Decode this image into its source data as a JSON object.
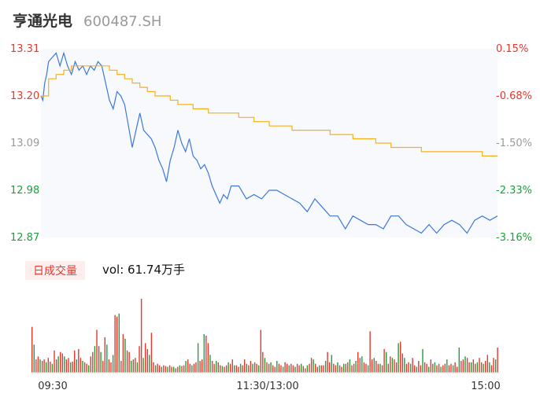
{
  "header": {
    "name": "亨通光电",
    "code": "600487.SH"
  },
  "volume": {
    "tag": "日成交量",
    "readout": "vol: 61.74万手"
  },
  "chart_data": [
    {
      "type": "line",
      "title": "",
      "x_ticks": [
        "09:30",
        "11:30/13:00",
        "15:00"
      ],
      "y_ticks_left": [
        "13.31",
        "13.20",
        "13.09",
        "12.98",
        "12.87"
      ],
      "y_ticks_right": [
        "0.15%",
        "-0.68%",
        "-1.50%",
        "-2.33%",
        "-3.16%"
      ],
      "ylim": [
        12.87,
        13.31
      ],
      "colors": {
        "up": "#e8372c",
        "neutral": "#999999",
        "down": "#1aa33a",
        "price": "#3c78d8",
        "avg": "#f5b01c"
      },
      "series": [
        {
          "role": "price",
          "x": [
            0,
            1,
            2,
            3,
            4,
            6,
            8,
            10,
            12,
            14,
            16,
            18,
            20,
            22,
            24,
            26,
            28,
            30,
            32,
            34,
            36,
            38,
            40,
            42,
            44,
            46,
            48,
            50,
            52,
            54,
            56,
            58,
            60,
            62,
            64,
            66,
            68,
            70,
            72,
            74,
            76,
            78,
            80,
            82,
            84,
            86,
            88,
            90,
            92,
            94,
            96,
            98,
            100,
            104,
            108,
            112,
            116,
            120,
            124,
            128,
            132,
            136,
            140,
            144,
            148,
            152,
            156,
            160,
            164,
            168,
            172,
            176,
            180,
            184,
            188,
            192,
            196,
            200,
            204,
            208,
            212,
            216,
            220,
            224,
            228,
            232,
            236,
            240
          ],
          "values": [
            13.2,
            13.19,
            13.23,
            13.25,
            13.28,
            13.29,
            13.3,
            13.27,
            13.3,
            13.27,
            13.25,
            13.28,
            13.26,
            13.27,
            13.25,
            13.27,
            13.26,
            13.28,
            13.27,
            13.23,
            13.19,
            13.17,
            13.21,
            13.2,
            13.18,
            13.13,
            13.08,
            13.12,
            13.16,
            13.12,
            13.11,
            13.1,
            13.08,
            13.05,
            13.03,
            13.0,
            13.05,
            13.08,
            13.12,
            13.09,
            13.07,
            13.1,
            13.06,
            13.05,
            13.03,
            13.04,
            13.02,
            12.99,
            12.97,
            12.95,
            12.97,
            12.96,
            12.99,
            12.99,
            12.96,
            12.97,
            12.96,
            12.98,
            12.98,
            12.97,
            12.96,
            12.95,
            12.93,
            12.96,
            12.94,
            12.92,
            12.92,
            12.89,
            12.92,
            12.91,
            12.9,
            12.9,
            12.89,
            12.92,
            12.92,
            12.9,
            12.89,
            12.88,
            12.9,
            12.88,
            12.9,
            12.91,
            12.9,
            12.88,
            12.91,
            12.92,
            12.91,
            12.92
          ]
        },
        {
          "role": "average",
          "x": [
            0,
            4,
            8,
            12,
            16,
            20,
            24,
            28,
            32,
            36,
            40,
            44,
            48,
            52,
            56,
            60,
            64,
            68,
            72,
            76,
            80,
            84,
            88,
            92,
            96,
            100,
            104,
            108,
            112,
            116,
            120,
            124,
            128,
            132,
            136,
            140,
            144,
            148,
            152,
            156,
            160,
            164,
            168,
            172,
            176,
            180,
            184,
            188,
            192,
            196,
            200,
            204,
            208,
            212,
            216,
            220,
            224,
            228,
            232,
            236,
            240
          ],
          "values": [
            13.2,
            13.24,
            13.25,
            13.26,
            13.27,
            13.27,
            13.27,
            13.27,
            13.27,
            13.26,
            13.25,
            13.24,
            13.23,
            13.22,
            13.21,
            13.2,
            13.2,
            13.19,
            13.18,
            13.18,
            13.17,
            13.17,
            13.16,
            13.16,
            13.16,
            13.16,
            13.15,
            13.15,
            13.14,
            13.14,
            13.13,
            13.13,
            13.13,
            13.12,
            13.12,
            13.12,
            13.12,
            13.12,
            13.11,
            13.11,
            13.11,
            13.1,
            13.1,
            13.1,
            13.09,
            13.09,
            13.08,
            13.08,
            13.08,
            13.08,
            13.07,
            13.07,
            13.07,
            13.07,
            13.07,
            13.07,
            13.07,
            13.07,
            13.06,
            13.06,
            13.06
          ]
        }
      ]
    },
    {
      "type": "bar",
      "title": "",
      "ylim": [
        0,
        100
      ],
      "values": [
        62,
        38,
        18,
        22,
        18,
        16,
        18,
        14,
        20,
        15,
        12,
        30,
        18,
        22,
        28,
        26,
        22,
        18,
        20,
        14,
        15,
        30,
        18,
        32,
        20,
        16,
        14,
        12,
        10,
        22,
        28,
        36,
        58,
        36,
        28,
        16,
        48,
        38,
        18,
        14,
        24,
        78,
        76,
        80,
        16,
        52,
        46,
        30,
        28,
        16,
        18,
        20,
        14,
        36,
        100,
        20,
        40,
        32,
        24,
        54,
        14,
        10,
        12,
        10,
        8,
        10,
        9,
        8,
        10,
        8,
        8,
        6,
        8,
        10,
        9,
        10,
        16,
        18,
        12,
        10,
        12,
        14,
        40,
        16,
        18,
        52,
        50,
        40,
        24,
        16,
        12,
        16,
        14,
        10,
        9,
        8,
        10,
        14,
        12,
        18,
        10,
        10,
        8,
        12,
        10,
        18,
        12,
        10,
        16,
        12,
        14,
        12,
        10,
        58,
        28,
        20,
        14,
        12,
        14,
        10,
        8,
        16,
        12,
        10,
        8,
        14,
        12,
        10,
        12,
        10,
        8,
        12,
        10,
        12,
        9,
        6,
        10,
        12,
        20,
        18,
        12,
        8,
        10,
        10,
        10,
        16,
        28,
        14,
        24,
        12,
        10,
        14,
        10,
        8,
        12,
        12,
        14,
        18,
        10,
        12,
        16,
        28,
        20,
        22,
        14,
        12,
        10,
        56,
        18,
        20,
        16,
        12,
        12,
        10,
        32,
        28,
        12,
        22,
        20,
        18,
        14,
        40,
        42,
        26,
        20,
        12,
        14,
        12,
        20,
        10,
        8,
        16,
        10,
        32,
        14,
        12,
        8,
        18,
        12,
        14,
        10,
        12,
        8,
        10,
        12,
        18,
        10,
        12,
        10,
        14,
        8,
        34,
        16,
        18,
        22,
        20,
        14,
        14,
        18,
        12,
        14,
        20,
        14,
        12,
        16,
        24,
        14,
        10,
        20,
        18,
        34
      ]
    }
  ]
}
